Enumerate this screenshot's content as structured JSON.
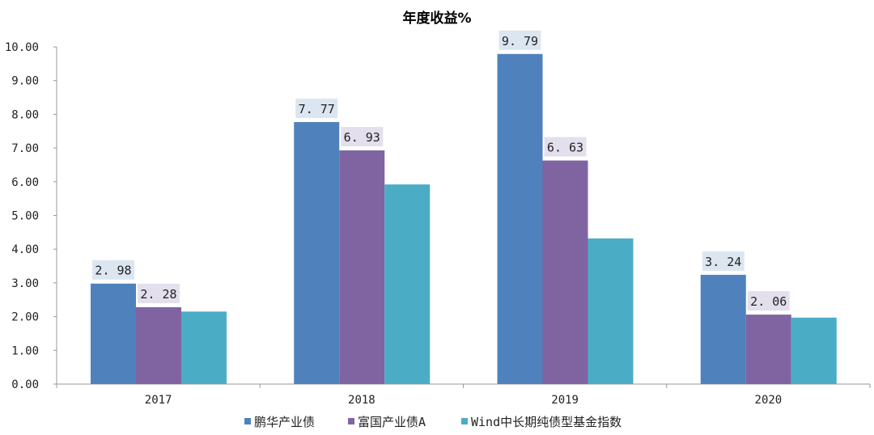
{
  "chart_data": {
    "type": "bar",
    "title": "年度收益%",
    "categories": [
      "2017",
      "2018",
      "2019",
      "2020"
    ],
    "series": [
      {
        "name": "鹏华产业债",
        "values": [
          2.98,
          7.77,
          9.79,
          3.24
        ],
        "color": "#4f81bd",
        "label_bg": "#dce6f1",
        "labels_shown": true
      },
      {
        "name": "富国产业债A",
        "values": [
          2.28,
          6.93,
          6.63,
          2.06
        ],
        "color": "#8064a2",
        "label_bg": "#e4dfec",
        "labels_shown": true
      },
      {
        "name": "Wind中长期纯债型基金指数",
        "values": [
          2.15,
          5.92,
          4.32,
          1.97
        ],
        "color": "#4bacc6",
        "labels_shown": false
      }
    ],
    "ylim": [
      0,
      10
    ],
    "yticks": [
      "0.00",
      "1.00",
      "2.00",
      "3.00",
      "4.00",
      "5.00",
      "6.00",
      "7.00",
      "8.00",
      "9.00",
      "10.00"
    ],
    "grid": false,
    "legend": "bottom"
  }
}
